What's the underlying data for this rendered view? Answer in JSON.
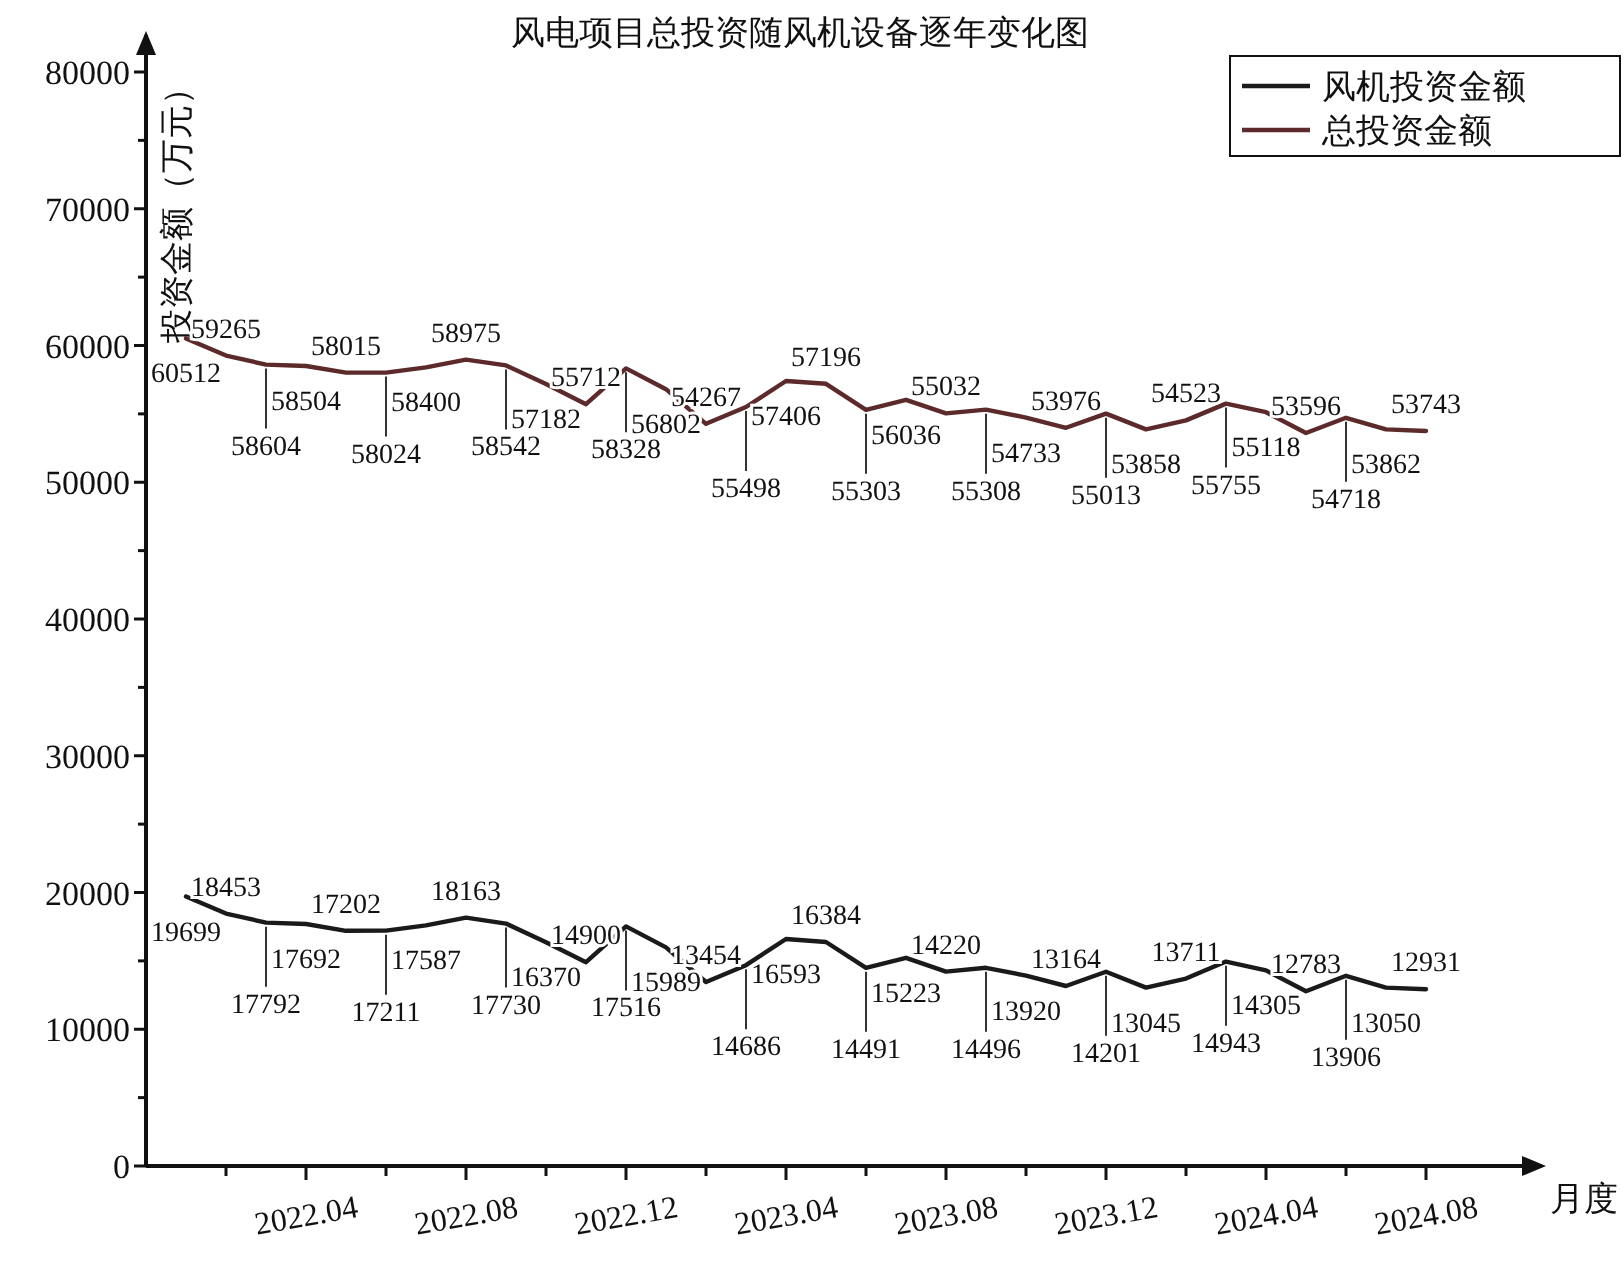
{
  "chart_data": {
    "type": "line",
    "title": "风电项目总投资随风机设备逐年变化图",
    "xlabel": "月度",
    "ylabel": "投资金额（万元）",
    "x": [
      "2022-01",
      "2022-02",
      "2022-03",
      "2022-04",
      "2022-05",
      "2022-06",
      "2022-07",
      "2022-08",
      "2022-09",
      "2022-10",
      "2022-11",
      "2022-12",
      "2023-01",
      "2023-02",
      "2023-03",
      "2023-04",
      "2023-05",
      "2023-06",
      "2023-07",
      "2023-08",
      "2023-09",
      "2023-10",
      "2023-11",
      "2023-12",
      "2024-01",
      "2024-02",
      "2024-03",
      "2024-04",
      "2024-05",
      "2024-06",
      "2024-07",
      "2024-08"
    ],
    "series": [
      {
        "name": "风机投资金额",
        "color": "#1a1a1a",
        "values": [
          19699,
          18453,
          17792,
          17692,
          17202,
          17211,
          17587,
          18163,
          17730,
          16370,
          14900,
          17516,
          15989,
          13454,
          14686,
          16593,
          16384,
          14491,
          15223,
          14220,
          14496,
          13920,
          13164,
          14201,
          13045,
          13711,
          14943,
          14305,
          12783,
          13906,
          13050,
          12931
        ]
      },
      {
        "name": "总投资金额",
        "color": "#5c2a2a",
        "values": [
          60512,
          59265,
          58604,
          58504,
          58015,
          58024,
          58400,
          58975,
          58542,
          57182,
          55712,
          58328,
          56802,
          54267,
          55498,
          57406,
          57196,
          55303,
          56036,
          55032,
          55308,
          54733,
          53976,
          55013,
          53858,
          54523,
          55755,
          55118,
          53596,
          54718,
          53862,
          53743
        ]
      }
    ],
    "data_labels": true,
    "xlim": [
      "2021-12",
      "2024-11"
    ],
    "xticks": [
      {
        "value": "2022-02",
        "label": null
      },
      {
        "value": "2022-04",
        "label": "2022.04"
      },
      {
        "value": "2022-06",
        "label": null
      },
      {
        "value": "2022-08",
        "label": "2022.08"
      },
      {
        "value": "2022-10",
        "label": null
      },
      {
        "value": "2022-12",
        "label": "2022.12"
      },
      {
        "value": "2023-02",
        "label": null
      },
      {
        "value": "2023-04",
        "label": "2023.04"
      },
      {
        "value": "2023-06",
        "label": null
      },
      {
        "value": "2023-08",
        "label": "2023.08"
      },
      {
        "value": "2023-10",
        "label": null
      },
      {
        "value": "2023-12",
        "label": "2023.12"
      },
      {
        "value": "2024-02",
        "label": null
      },
      {
        "value": "2024-04",
        "label": "2024.04"
      },
      {
        "value": "2024-06",
        "label": null
      },
      {
        "value": "2024-08",
        "label": "2024.08"
      }
    ],
    "ylim": [
      0,
      83000
    ],
    "yticks": [
      0,
      {
        "value": 5000,
        "label": null
      },
      10000,
      {
        "value": 15000,
        "label": null
      },
      20000,
      {
        "value": 25000,
        "label": null
      },
      30000,
      {
        "value": 35000,
        "label": null
      },
      40000,
      {
        "value": 45000,
        "label": null
      },
      50000,
      {
        "value": 55000,
        "label": null
      },
      60000,
      {
        "value": 65000,
        "label": null
      },
      70000,
      {
        "value": 75000,
        "label": null
      },
      80000
    ],
    "grid": false,
    "legend": "top right",
    "marker": "none",
    "line_style": "solid"
  }
}
